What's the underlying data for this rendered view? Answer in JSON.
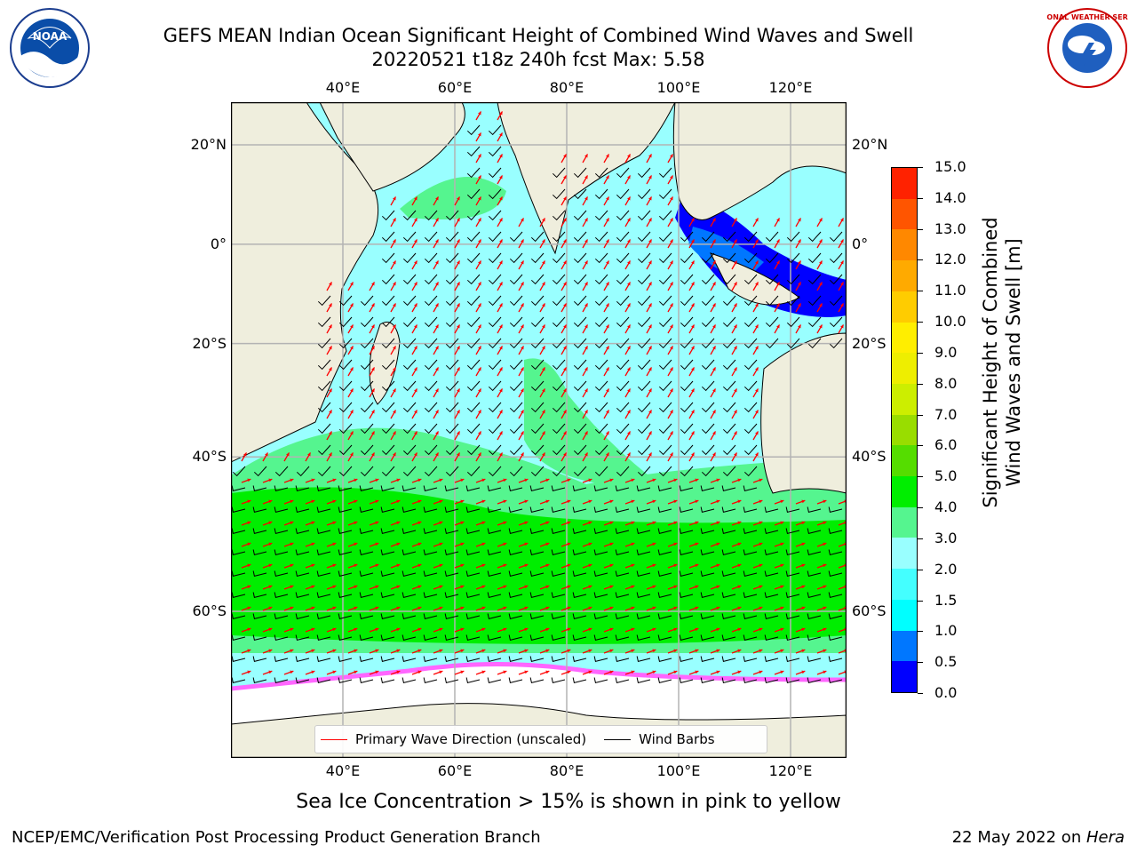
{
  "title": {
    "line1": "GEFS MEAN Indian Ocean Significant Height of Combined Wind Waves and Swell",
    "line2": "20220521 t18z 240h fcst   Max: 5.58"
  },
  "logos": {
    "left": {
      "text": "NOAA",
      "icon": "noaa-logo"
    },
    "right": {
      "text": "NATIONAL WEATHER SERVICE",
      "icon": "nws-logo"
    }
  },
  "map": {
    "lon_range": [
      20,
      130
    ],
    "lat_range": [
      -72,
      28
    ],
    "lon_ticks": [
      {
        "lon": 40,
        "label": "40°E"
      },
      {
        "lon": 60,
        "label": "60°E"
      },
      {
        "lon": 80,
        "label": "80°E"
      },
      {
        "lon": 100,
        "label": "100°E"
      },
      {
        "lon": 120,
        "label": "120°E"
      }
    ],
    "lat_ticks": [
      {
        "lat": 20,
        "label": "20°N"
      },
      {
        "lat": 0,
        "label": "0°"
      },
      {
        "lat": -20,
        "label": "20°S"
      },
      {
        "lat": -40,
        "label": "40°S"
      },
      {
        "lat": -60,
        "label": "60°S"
      }
    ],
    "colors": {
      "land": "#efeedd",
      "ice": "#ffffff",
      "grid": "#b3b3b3",
      "wave_arrow": "#ff0000",
      "wind_barb": "#000000"
    }
  },
  "colorbar": {
    "title_line1": "Significant Height of Combined",
    "title_line2": "Wind Waves and Swell [m]",
    "labels": [
      "0.0",
      "0.5",
      "1.0",
      "1.5",
      "2.0",
      "3.0",
      "4.0",
      "5.0",
      "6.0",
      "7.0",
      "8.0",
      "9.0",
      "10.0",
      "11.0",
      "12.0",
      "13.0",
      "14.0",
      "15.0"
    ],
    "colors": [
      "#0000ff",
      "#0077ff",
      "#00ffff",
      "#44ffff",
      "#99ffff",
      "#55f58f",
      "#00ee00",
      "#55dd00",
      "#99dd00",
      "#ccee00",
      "#eeee00",
      "#ffee00",
      "#ffcc00",
      "#ffaa00",
      "#ff8800",
      "#ff5500",
      "#ff2200"
    ]
  },
  "legend": {
    "items": [
      {
        "label": "Primary Wave Direction (unscaled)",
        "color": "#ff0000"
      },
      {
        "label": "Wind Barbs",
        "color": "#000000"
      }
    ]
  },
  "caption": "Sea Ice Concentration > 15% is shown in pink to yellow",
  "footer": {
    "left": "NCEP/EMC/Verification Post Processing Product Generation Branch",
    "date": "22 May 2022 on ",
    "host": "Hera"
  }
}
